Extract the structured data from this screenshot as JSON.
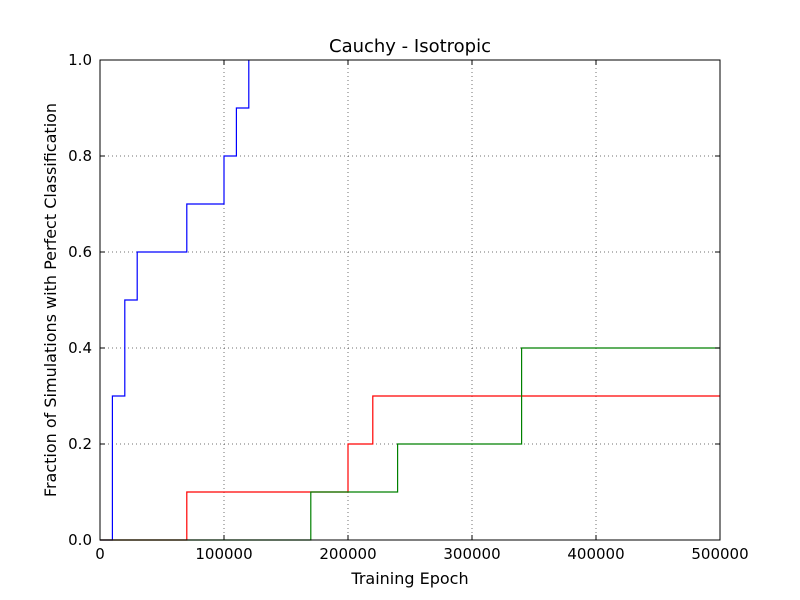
{
  "chart_data": {
    "type": "line",
    "step": "post",
    "title": "Cauchy - Isotropic",
    "xlabel": "Training Epoch",
    "ylabel": "Fraction of Simulations with Perfect Classification",
    "xlim": [
      0,
      500000
    ],
    "ylim": [
      0.0,
      1.0
    ],
    "grid": true,
    "x_ticks": [
      0,
      100000,
      200000,
      300000,
      400000,
      500000
    ],
    "x_tick_labels": [
      "0",
      "100000",
      "200000",
      "300000",
      "400000",
      "500000"
    ],
    "y_ticks": [
      0.0,
      0.2,
      0.4,
      0.6,
      0.8,
      1.0
    ],
    "y_tick_labels": [
      "0.0",
      "0.2",
      "0.4",
      "0.6",
      "0.8",
      "1.0"
    ],
    "series": [
      {
        "color": "#0000ff",
        "x": [
          0,
          10000,
          20000,
          30000,
          70000,
          100000,
          110000,
          120000
        ],
        "y": [
          0.0,
          0.3,
          0.5,
          0.6,
          0.7,
          0.8,
          0.9,
          1.0
        ]
      },
      {
        "color": "#ff0000",
        "x": [
          0,
          70000,
          200000,
          220000,
          500000
        ],
        "y": [
          0.0,
          0.1,
          0.2,
          0.3,
          0.3
        ]
      },
      {
        "color": "#008000",
        "x": [
          0,
          170000,
          240000,
          340000,
          500000
        ],
        "y": [
          0.0,
          0.1,
          0.2,
          0.4,
          0.4
        ]
      }
    ]
  }
}
